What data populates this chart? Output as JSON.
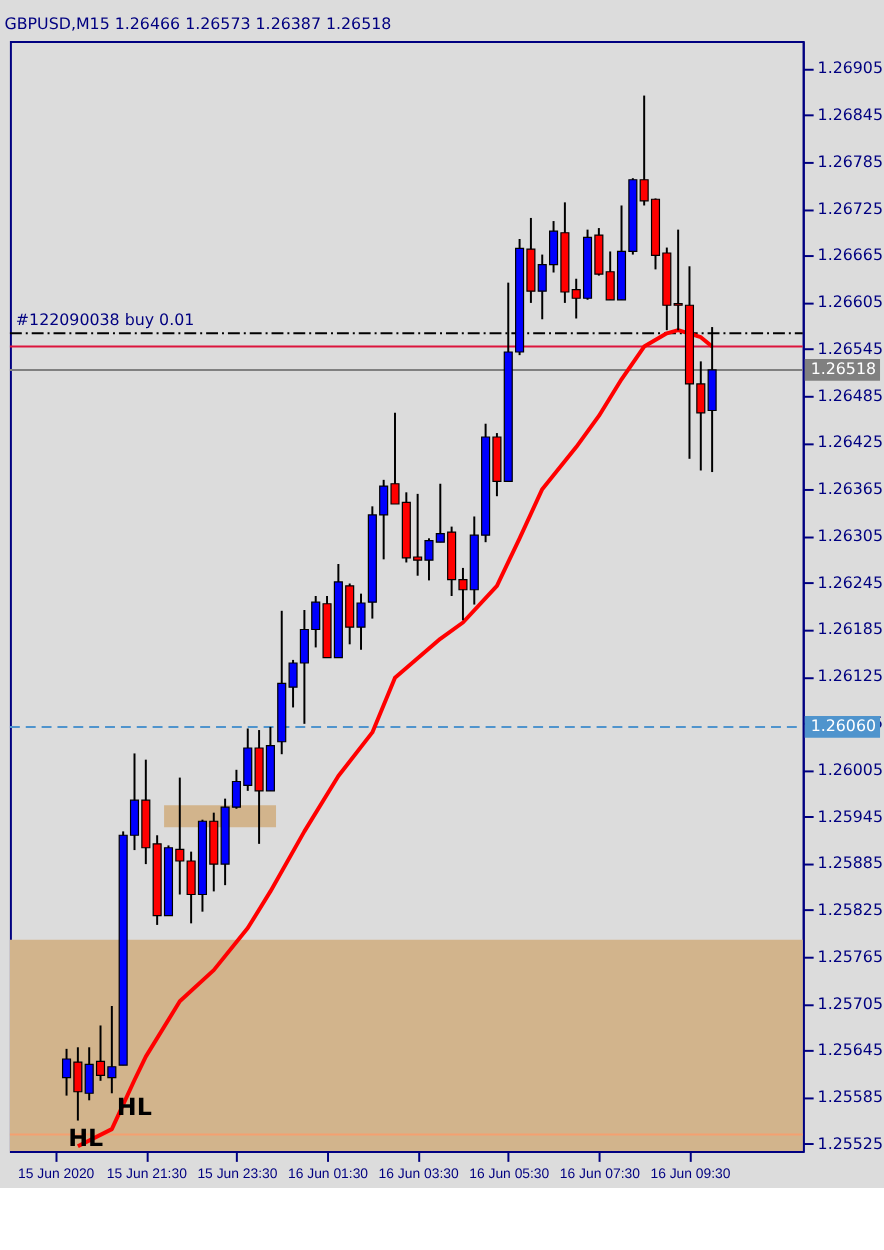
{
  "chart_data": {
    "type": "candlestick",
    "title": "GBPUSD,M15  1.26466 1.26573 1.26387 1.26518",
    "x": [
      "2020-06-15T19:45",
      "2020-06-15T20:00",
      "2020-06-15T20:15",
      "2020-06-15T20:30",
      "2020-06-15T20:45",
      "2020-06-15T21:00",
      "2020-06-15T21:15",
      "2020-06-15T21:30",
      "2020-06-15T21:45",
      "2020-06-15T22:00",
      "2020-06-15T22:15",
      "2020-06-15T22:30",
      "2020-06-15T22:45",
      "2020-06-15T23:00",
      "2020-06-15T23:15",
      "2020-06-15T23:30",
      "2020-06-15T23:45",
      "2020-06-16T00:00",
      "2020-06-16T00:15",
      "2020-06-16T00:30",
      "2020-06-16T00:45",
      "2020-06-16T01:00",
      "2020-06-16T01:15",
      "2020-06-16T01:30",
      "2020-06-16T01:45",
      "2020-06-16T02:00",
      "2020-06-16T02:15",
      "2020-06-16T02:30",
      "2020-06-16T02:45",
      "2020-06-16T03:00",
      "2020-06-16T03:15",
      "2020-06-16T03:30",
      "2020-06-16T03:45",
      "2020-06-16T04:00",
      "2020-06-16T04:15",
      "2020-06-16T04:30",
      "2020-06-16T04:45",
      "2020-06-16T05:00",
      "2020-06-16T05:15",
      "2020-06-16T05:30",
      "2020-06-16T05:45",
      "2020-06-16T06:00",
      "2020-06-16T06:15",
      "2020-06-16T06:30",
      "2020-06-16T06:45",
      "2020-06-16T07:00",
      "2020-06-16T07:15",
      "2020-06-16T07:30",
      "2020-06-16T07:45",
      "2020-06-16T08:00",
      "2020-06-16T08:15",
      "2020-06-16T08:30",
      "2020-06-16T08:45",
      "2020-06-16T09:00",
      "2020-06-16T09:15",
      "2020-06-16T09:30",
      "2020-06-16T09:45",
      "2020-06-16T10:00"
    ],
    "ohlc": [
      [
        1.2561,
        1.25647,
        1.25587,
        1.25634
      ],
      [
        1.2563,
        1.25649,
        1.25555,
        1.25592
      ],
      [
        1.2559,
        1.25649,
        1.25581,
        1.25627
      ],
      [
        1.25631,
        1.25677,
        1.25606,
        1.25613
      ],
      [
        1.2561,
        1.25702,
        1.2559,
        1.25624
      ],
      [
        1.25626,
        1.25926,
        1.25626,
        1.25921
      ],
      [
        1.25921,
        1.26026,
        1.25902,
        1.25966
      ],
      [
        1.25966,
        1.26018,
        1.25884,
        1.25905
      ],
      [
        1.2591,
        1.25921,
        1.25806,
        1.25818
      ],
      [
        1.25818,
        1.25908,
        1.25818,
        1.25905
      ],
      [
        1.25903,
        1.25995,
        1.25845,
        1.25888
      ],
      [
        1.25888,
        1.259,
        1.25808,
        1.25845
      ],
      [
        1.25845,
        1.25941,
        1.25823,
        1.25939
      ],
      [
        1.25939,
        1.2595,
        1.25849,
        1.25884
      ],
      [
        1.25884,
        1.25968,
        1.25857,
        1.25957
      ],
      [
        1.25957,
        1.26005,
        1.25955,
        1.2599
      ],
      [
        1.25985,
        1.26058,
        1.25978,
        1.26033
      ],
      [
        1.26033,
        1.26056,
        1.2591,
        1.25978
      ],
      [
        1.25978,
        1.2606,
        1.25978,
        1.26036
      ],
      [
        1.26041,
        1.26209,
        1.26025,
        1.26116
      ],
      [
        1.26111,
        1.26146,
        1.26085,
        1.26142
      ],
      [
        1.26142,
        1.2621,
        1.26064,
        1.26185
      ],
      [
        1.26185,
        1.26228,
        1.26162,
        1.2622
      ],
      [
        1.26218,
        1.26228,
        1.26149,
        1.26149
      ],
      [
        1.26149,
        1.26269,
        1.26149,
        1.26246
      ],
      [
        1.26241,
        1.26244,
        1.26166,
        1.26188
      ],
      [
        1.26188,
        1.26231,
        1.26159,
        1.26219
      ],
      [
        1.2622,
        1.26343,
        1.26199,
        1.26332
      ],
      [
        1.26332,
        1.26377,
        1.26275,
        1.26369
      ],
      [
        1.26372,
        1.26463,
        1.26346,
        1.26346
      ],
      [
        1.26348,
        1.26361,
        1.26271,
        1.26277
      ],
      [
        1.26278,
        1.26359,
        1.26254,
        1.26274
      ],
      [
        1.26274,
        1.26302,
        1.26248,
        1.26299
      ],
      [
        1.26297,
        1.26372,
        1.26297,
        1.26308
      ],
      [
        1.2631,
        1.26317,
        1.26228,
        1.26249
      ],
      [
        1.26249,
        1.26264,
        1.26197,
        1.26236
      ],
      [
        1.26236,
        1.2633,
        1.26217,
        1.26306
      ],
      [
        1.26306,
        1.26449,
        1.26297,
        1.26432
      ],
      [
        1.26432,
        1.26437,
        1.26356,
        1.26375
      ],
      [
        1.26375,
        1.2663,
        1.26375,
        1.26541
      ],
      [
        1.26541,
        1.26686,
        1.26537,
        1.26674
      ],
      [
        1.26673,
        1.26713,
        1.26604,
        1.26619
      ],
      [
        1.26619,
        1.26666,
        1.26583,
        1.26653
      ],
      [
        1.26653,
        1.26709,
        1.26643,
        1.26696
      ],
      [
        1.26694,
        1.26733,
        1.26604,
        1.26618
      ],
      [
        1.26621,
        1.26635,
        1.26584,
        1.2661
      ],
      [
        1.2661,
        1.26698,
        1.26608,
        1.26688
      ],
      [
        1.26691,
        1.267,
        1.26639,
        1.26641
      ],
      [
        1.26644,
        1.2667,
        1.26608,
        1.26608
      ],
      [
        1.26608,
        1.26729,
        1.26608,
        1.2667
      ],
      [
        1.2667,
        1.26764,
        1.26666,
        1.26762
      ],
      [
        1.26762,
        1.2687,
        1.26729,
        1.26735
      ],
      [
        1.26737,
        1.26738,
        1.26647,
        1.26665
      ],
      [
        1.26668,
        1.26675,
        1.26569,
        1.26601
      ],
      [
        1.26603,
        1.26698,
        1.26569,
        1.26601
      ],
      [
        1.26601,
        1.26651,
        1.26404,
        1.265
      ],
      [
        1.265,
        1.26529,
        1.26389,
        1.26463
      ],
      [
        1.26466,
        1.26573,
        1.26387,
        1.26518
      ]
    ],
    "colors": [
      "#0000ff",
      "#ff0000",
      "#0000ff",
      "#ff0000",
      "#0000ff",
      "#0000ff",
      "#0000ff",
      "#ff0000",
      "#ff0000",
      "#0000ff",
      "#ff0000",
      "#ff0000",
      "#0000ff",
      "#ff0000",
      "#0000ff",
      "#0000ff",
      "#0000ff",
      "#ff0000",
      "#0000ff",
      "#0000ff",
      "#0000ff",
      "#0000ff",
      "#0000ff",
      "#ff0000",
      "#0000ff",
      "#ff0000",
      "#0000ff",
      "#0000ff",
      "#0000ff",
      "#ff0000",
      "#ff0000",
      "#ff0000",
      "#0000ff",
      "#0000ff",
      "#ff0000",
      "#ff0000",
      "#0000ff",
      "#0000ff",
      "#ff0000",
      "#0000ff",
      "#0000ff",
      "#ff0000",
      "#0000ff",
      "#0000ff",
      "#ff0000",
      "#ff0000",
      "#0000ff",
      "#ff0000",
      "#ff0000",
      "#0000ff",
      "#0000ff",
      "#ff0000",
      "#ff0000",
      "#ff0000",
      "#ff0000",
      "#ff0000",
      "#ff0000",
      "#0000ff"
    ],
    "series": [
      {
        "type": "line",
        "color": "#ff0000",
        "x": [
          "2020-06-15T20:00",
          "2020-06-15T20:45",
          "2020-06-15T21:15",
          "2020-06-15T21:30",
          "2020-06-15T22:15",
          "2020-06-15T23:00",
          "2020-06-15T23:45",
          "2020-06-16T00:15",
          "2020-06-16T01:00",
          "2020-06-16T01:45",
          "2020-06-16T02:30",
          "2020-06-16T03:00",
          "2020-06-16T04:00",
          "2020-06-16T04:30",
          "2020-06-16T05:15",
          "2020-06-16T05:45",
          "2020-06-16T06:15",
          "2020-06-16T07:00",
          "2020-06-16T07:30",
          "2020-06-16T08:00",
          "2020-06-16T08:30",
          "2020-06-16T09:00",
          "2020-06-16T09:15",
          "2020-06-16T09:45",
          "2020-06-16T10:00"
        ],
        "values": [
          1.25522,
          1.25544,
          1.25607,
          1.25637,
          1.25708,
          1.25748,
          1.25802,
          1.25849,
          1.25926,
          1.25997,
          1.26053,
          1.26123,
          1.26173,
          1.26194,
          1.26241,
          1.26302,
          1.26365,
          1.26419,
          1.26459,
          1.26506,
          1.26548,
          1.26565,
          1.26569,
          1.2656,
          1.26548
        ]
      }
    ],
    "xlim": [
      "2020-06-15T18:30",
      "2020-06-16T12:00"
    ],
    "xticks": [
      {
        "value": "2020-06-15T19:30",
        "label": "15 Jun 2020"
      },
      {
        "value": "2020-06-15T21:30",
        "label": "15 Jun 21:30"
      },
      {
        "value": "2020-06-15T23:30",
        "label": "15 Jun 23:30"
      },
      {
        "value": "2020-06-16T01:30",
        "label": "16 Jun 01:30"
      },
      {
        "value": "2020-06-16T03:30",
        "label": "16 Jun 03:30"
      },
      {
        "value": "2020-06-16T05:30",
        "label": "16 Jun 05:30"
      },
      {
        "value": "2020-06-16T07:30",
        "label": "16 Jun 07:30"
      },
      {
        "value": "2020-06-16T09:30",
        "label": "16 Jun 09:30"
      }
    ],
    "ylim": [
      1.25516,
      1.2694
    ],
    "yticks": [
      1.26905,
      1.26845,
      1.26785,
      1.26725,
      1.26665,
      1.26605,
      1.26545,
      1.26485,
      1.26425,
      1.26365,
      1.26305,
      1.26245,
      1.26185,
      1.26125,
      1.26065,
      1.26005,
      1.25945,
      1.25885,
      1.25825,
      1.25765,
      1.25705,
      1.25645,
      1.25585,
      1.25525
    ],
    "ref_lines": [
      {
        "axis": "y",
        "value": 1.26565,
        "label": "#122090038 buy 0.01",
        "color": "#000000",
        "line_style": "dashdot"
      },
      {
        "axis": "y",
        "value": 1.26548,
        "color": "#dc143c",
        "line_style": "solid"
      },
      {
        "axis": "y",
        "value": 1.26518,
        "label": "1.26518",
        "color": "#808080",
        "line_style": "solid"
      },
      {
        "axis": "y",
        "value": 1.2606,
        "label": "1.26060",
        "color": "#4f94cd",
        "line_style": "dashed"
      },
      {
        "axis": "y",
        "value": 1.25537,
        "color": "#f4a070",
        "line_style": "solid"
      }
    ],
    "bands": [
      {
        "axis": "y",
        "from": 1.25516,
        "to": 1.25787,
        "color": "#d2b48c"
      }
    ],
    "annotations": [
      "HL",
      "HL"
    ],
    "line_style": "solid"
  }
}
